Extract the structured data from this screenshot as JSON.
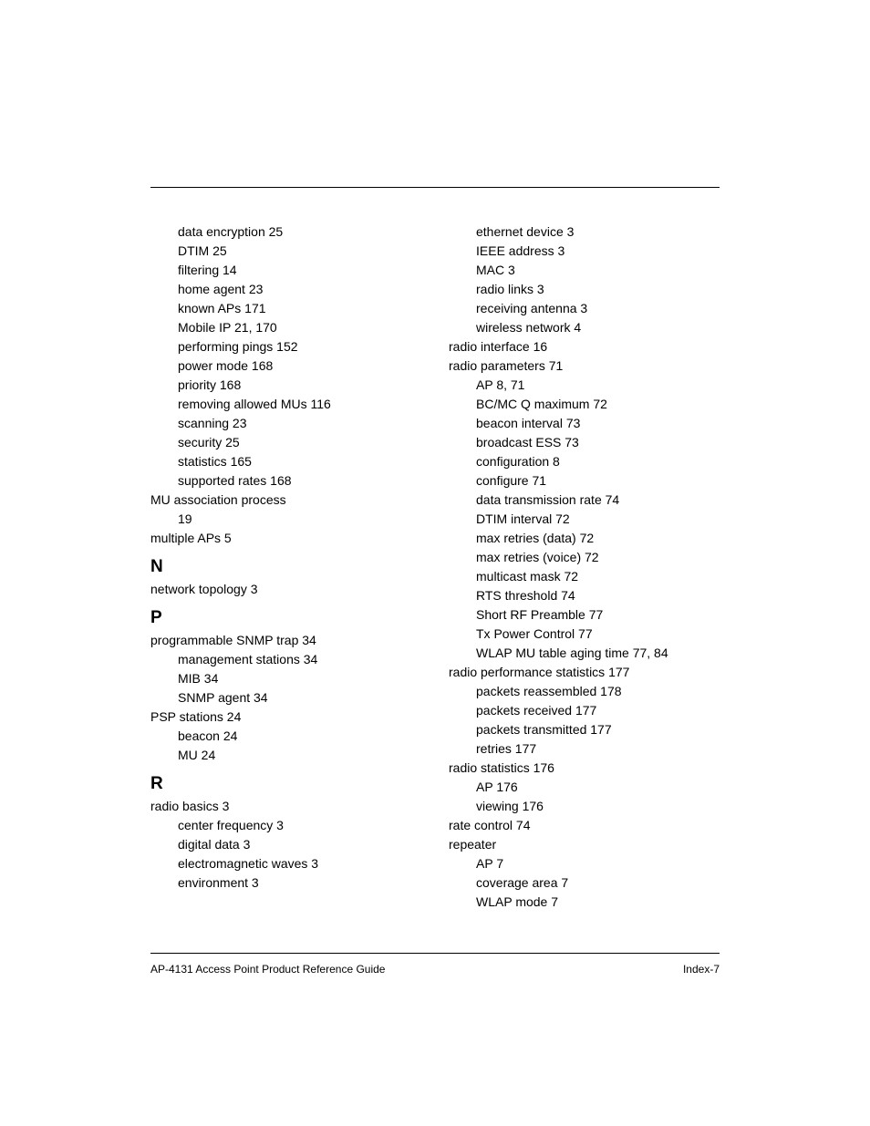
{
  "page": {
    "background_color": "#ffffff",
    "font_family": "Arial, Helvetica, sans-serif",
    "body_fontsize": 14,
    "letter_fontsize": 19,
    "footer_fontsize": 12,
    "line_height": 21
  },
  "footer": {
    "left": "AP-4131 Access Point Product Reference Guide",
    "right": "Index-7"
  },
  "left_column": [
    {
      "type": "entry",
      "level": 1,
      "text": "data encryption 25"
    },
    {
      "type": "entry",
      "level": 1,
      "text": "DTIM 25"
    },
    {
      "type": "entry",
      "level": 1,
      "text": "filtering 14"
    },
    {
      "type": "entry",
      "level": 1,
      "text": "home agent 23"
    },
    {
      "type": "entry",
      "level": 1,
      "text": "known APs 171"
    },
    {
      "type": "entry",
      "level": 1,
      "text": "Mobile IP 21, 170"
    },
    {
      "type": "entry",
      "level": 1,
      "text": "performing pings 152"
    },
    {
      "type": "entry",
      "level": 1,
      "text": "power mode 168"
    },
    {
      "type": "entry",
      "level": 1,
      "text": "priority 168"
    },
    {
      "type": "entry",
      "level": 1,
      "text": "removing allowed MUs 116"
    },
    {
      "type": "entry",
      "level": 1,
      "text": "scanning 23"
    },
    {
      "type": "entry",
      "level": 1,
      "text": "security 25"
    },
    {
      "type": "entry",
      "level": 1,
      "text": "statistics 165"
    },
    {
      "type": "entry",
      "level": 1,
      "text": "supported rates 168"
    },
    {
      "type": "entry",
      "level": 0,
      "text": "MU association process"
    },
    {
      "type": "entry",
      "level": 1,
      "text": "19"
    },
    {
      "type": "entry",
      "level": 0,
      "text": "multiple APs 5"
    },
    {
      "type": "letter",
      "text": "N"
    },
    {
      "type": "entry",
      "level": 0,
      "text": "network topology 3"
    },
    {
      "type": "letter",
      "text": "P"
    },
    {
      "type": "entry",
      "level": 0,
      "text": "programmable SNMP trap 34"
    },
    {
      "type": "entry",
      "level": 1,
      "text": "management stations 34"
    },
    {
      "type": "entry",
      "level": 1,
      "text": "MIB 34"
    },
    {
      "type": "entry",
      "level": 1,
      "text": "SNMP agent 34"
    },
    {
      "type": "entry",
      "level": 0,
      "text": "PSP stations 24"
    },
    {
      "type": "entry",
      "level": 1,
      "text": "beacon 24"
    },
    {
      "type": "entry",
      "level": 1,
      "text": "MU 24"
    },
    {
      "type": "letter",
      "text": "R"
    },
    {
      "type": "entry",
      "level": 0,
      "text": "radio basics 3"
    },
    {
      "type": "entry",
      "level": 1,
      "text": "center frequency 3"
    },
    {
      "type": "entry",
      "level": 1,
      "text": "digital data 3"
    },
    {
      "type": "entry",
      "level": 1,
      "text": "electromagnetic waves 3"
    },
    {
      "type": "entry",
      "level": 1,
      "text": "environment 3"
    }
  ],
  "right_column": [
    {
      "type": "entry",
      "level": 1,
      "text": "ethernet device 3"
    },
    {
      "type": "entry",
      "level": 1,
      "text": "IEEE address 3"
    },
    {
      "type": "entry",
      "level": 1,
      "text": "MAC 3"
    },
    {
      "type": "entry",
      "level": 1,
      "text": "radio links 3"
    },
    {
      "type": "entry",
      "level": 1,
      "text": "receiving antenna 3"
    },
    {
      "type": "entry",
      "level": 1,
      "text": "wireless network 4"
    },
    {
      "type": "entry",
      "level": 0,
      "text": "radio interface 16"
    },
    {
      "type": "entry",
      "level": 0,
      "text": "radio parameters 71"
    },
    {
      "type": "entry",
      "level": 1,
      "text": "AP 8, 71"
    },
    {
      "type": "entry",
      "level": 1,
      "text": "BC/MC Q maximum 72"
    },
    {
      "type": "entry",
      "level": 1,
      "text": "beacon interval 73"
    },
    {
      "type": "entry",
      "level": 1,
      "text": "broadcast ESS 73"
    },
    {
      "type": "entry",
      "level": 1,
      "text": "configuration 8"
    },
    {
      "type": "entry",
      "level": 1,
      "text": "configure 71"
    },
    {
      "type": "entry",
      "level": 1,
      "text": "data transmission rate 74"
    },
    {
      "type": "entry",
      "level": 1,
      "text": "DTIM interval 72"
    },
    {
      "type": "entry",
      "level": 1,
      "text": "max retries (data) 72"
    },
    {
      "type": "entry",
      "level": 1,
      "text": "max retries (voice) 72"
    },
    {
      "type": "entry",
      "level": 1,
      "text": "multicast mask 72"
    },
    {
      "type": "entry",
      "level": 1,
      "text": "RTS threshold 74"
    },
    {
      "type": "entry",
      "level": 1,
      "text": "Short RF Preamble 77"
    },
    {
      "type": "entry",
      "level": 1,
      "text": "Tx Power Control 77"
    },
    {
      "type": "entry",
      "level": 1,
      "text": "WLAP MU table aging time 77, 84"
    },
    {
      "type": "entry",
      "level": 0,
      "text": "radio performance statistics 177"
    },
    {
      "type": "entry",
      "level": 1,
      "text": "packets reassembled 178"
    },
    {
      "type": "entry",
      "level": 1,
      "text": "packets received 177"
    },
    {
      "type": "entry",
      "level": 1,
      "text": "packets transmitted 177"
    },
    {
      "type": "entry",
      "level": 1,
      "text": "retries 177"
    },
    {
      "type": "entry",
      "level": 0,
      "text": "radio statistics 176"
    },
    {
      "type": "entry",
      "level": 1,
      "text": "AP 176"
    },
    {
      "type": "entry",
      "level": 1,
      "text": "viewing 176"
    },
    {
      "type": "entry",
      "level": 0,
      "text": "rate control 74"
    },
    {
      "type": "entry",
      "level": 0,
      "text": "repeater"
    },
    {
      "type": "entry",
      "level": 1,
      "text": "AP 7"
    },
    {
      "type": "entry",
      "level": 1,
      "text": "coverage area 7"
    },
    {
      "type": "entry",
      "level": 1,
      "text": "WLAP mode 7"
    }
  ]
}
